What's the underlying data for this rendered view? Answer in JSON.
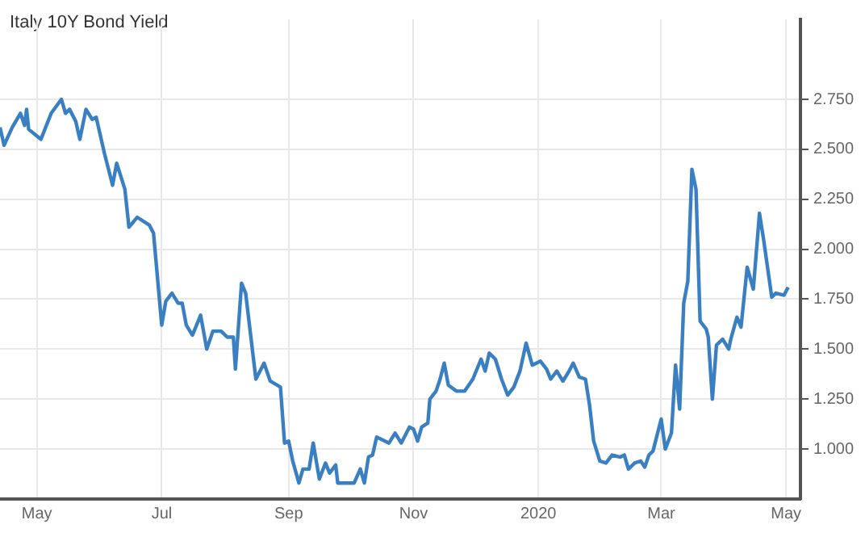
{
  "chart_data": {
    "type": "line",
    "title": "Italy 10Y Bond Yield",
    "x": [
      "2019-04-13",
      "2019-04-15",
      "2019-04-19",
      "2019-04-23",
      "2019-04-25",
      "2019-04-26",
      "2019-04-27",
      "2019-05-03",
      "2019-05-08",
      "2019-05-13",
      "2019-05-15",
      "2019-05-17",
      "2019-05-20",
      "2019-05-22",
      "2019-05-25",
      "2019-05-28",
      "2019-05-30",
      "2019-06-03",
      "2019-06-06",
      "2019-06-07",
      "2019-06-09",
      "2019-06-13",
      "2019-06-15",
      "2019-06-19",
      "2019-06-25",
      "2019-06-27",
      "2019-06-29",
      "2019-07-01",
      "2019-07-03",
      "2019-07-06",
      "2019-07-09",
      "2019-07-11",
      "2019-07-13",
      "2019-07-16",
      "2019-07-20",
      "2019-07-23",
      "2019-07-26",
      "2019-07-30",
      "2019-08-02",
      "2019-08-05",
      "2019-08-06",
      "2019-08-09",
      "2019-08-11",
      "2019-08-16",
      "2019-08-20",
      "2019-08-23",
      "2019-08-28",
      "2019-08-30",
      "2019-09-01",
      "2019-09-03",
      "2019-09-06",
      "2019-09-08",
      "2019-09-11",
      "2019-09-13",
      "2019-09-16",
      "2019-09-19",
      "2019-09-21",
      "2019-09-24",
      "2019-09-25",
      "2019-10-03",
      "2019-10-06",
      "2019-10-08",
      "2019-10-10",
      "2019-10-12",
      "2019-10-14",
      "2019-10-18",
      "2019-10-20",
      "2019-10-23",
      "2019-10-26",
      "2019-10-30",
      "2019-11-01",
      "2019-11-03",
      "2019-11-05",
      "2019-11-08",
      "2019-11-09",
      "2019-11-12",
      "2019-11-14",
      "2019-11-16",
      "2019-11-18",
      "2019-11-22",
      "2019-11-26",
      "2019-11-30",
      "2019-12-04",
      "2019-12-06",
      "2019-12-08",
      "2019-12-11",
      "2019-12-14",
      "2019-12-17",
      "2019-12-20",
      "2019-12-23",
      "2019-12-26",
      "2019-12-29",
      "2020-01-02",
      "2020-01-05",
      "2020-01-07",
      "2020-01-10",
      "2020-01-13",
      "2020-01-16",
      "2020-01-18",
      "2020-01-21",
      "2020-01-24",
      "2020-01-26",
      "2020-01-28",
      "2020-01-31",
      "2020-02-03",
      "2020-02-06",
      "2020-02-10",
      "2020-02-12",
      "2020-02-14",
      "2020-02-17",
      "2020-02-20",
      "2020-02-22",
      "2020-02-24",
      "2020-02-26",
      "2020-03-01",
      "2020-03-03",
      "2020-03-06",
      "2020-03-08",
      "2020-03-10",
      "2020-03-12",
      "2020-03-14",
      "2020-03-16",
      "2020-03-18",
      "2020-03-20",
      "2020-03-23",
      "2020-03-24",
      "2020-03-26",
      "2020-03-28",
      "2020-03-31",
      "2020-04-03",
      "2020-04-04",
      "2020-04-07",
      "2020-04-09",
      "2020-04-12",
      "2020-04-15",
      "2020-04-18",
      "2020-04-20",
      "2020-04-24",
      "2020-04-26",
      "2020-04-30",
      "2020-05-02"
    ],
    "series": [
      {
        "color": "#3a7fc1",
        "values": [
          2.61,
          2.52,
          2.61,
          2.68,
          2.62,
          2.7,
          2.6,
          2.55,
          2.68,
          2.75,
          2.68,
          2.7,
          2.64,
          2.55,
          2.7,
          2.65,
          2.66,
          2.48,
          2.36,
          2.32,
          2.43,
          2.3,
          2.11,
          2.16,
          2.12,
          2.08,
          1.85,
          1.62,
          1.74,
          1.78,
          1.73,
          1.73,
          1.62,
          1.57,
          1.67,
          1.5,
          1.59,
          1.59,
          1.56,
          1.56,
          1.4,
          1.83,
          1.78,
          1.35,
          1.43,
          1.34,
          1.31,
          1.03,
          1.04,
          0.94,
          0.83,
          0.9,
          0.9,
          1.03,
          0.85,
          0.93,
          0.88,
          0.92,
          0.83,
          0.83,
          0.9,
          0.83,
          0.96,
          0.97,
          1.06,
          1.04,
          1.03,
          1.08,
          1.03,
          1.11,
          1.1,
          1.04,
          1.11,
          1.13,
          1.25,
          1.29,
          1.35,
          1.43,
          1.32,
          1.29,
          1.29,
          1.35,
          1.45,
          1.39,
          1.48,
          1.45,
          1.35,
          1.27,
          1.31,
          1.39,
          1.53,
          1.42,
          1.44,
          1.4,
          1.35,
          1.39,
          1.34,
          1.39,
          1.43,
          1.36,
          1.35,
          1.22,
          1.04,
          0.94,
          0.93,
          0.97,
          0.96,
          0.97,
          0.9,
          0.93,
          0.94,
          0.91,
          0.97,
          0.99,
          1.15,
          1.0,
          1.08,
          1.42,
          1.2,
          1.73,
          1.84,
          2.4,
          2.3,
          1.64,
          1.6,
          1.56,
          1.25,
          1.52,
          1.55,
          1.5,
          1.55,
          1.66,
          1.61,
          1.91,
          1.8,
          2.18,
          2.05,
          1.76,
          1.78,
          1.77,
          1.81
        ]
      }
    ],
    "xlim": [
      "2019-04-13",
      "2020-05-08"
    ],
    "xticks": [
      {
        "value": "2019-05-01",
        "label": "May"
      },
      {
        "value": "2019-07-01",
        "label": "Jul"
      },
      {
        "value": "2019-09-01",
        "label": "Sep"
      },
      {
        "value": "2019-11-01",
        "label": "Nov"
      },
      {
        "value": "2020-01-01",
        "label": "2020"
      },
      {
        "value": "2020-03-01",
        "label": "Mar"
      },
      {
        "value": "2020-05-01",
        "label": "May"
      }
    ],
    "ylim": [
      0.75,
      3.15
    ],
    "yticks": [
      {
        "value": 1,
        "label": "1.000"
      },
      {
        "value": 1.25,
        "label": "1.250"
      },
      {
        "value": 1.5,
        "label": "1.500"
      },
      {
        "value": 1.75,
        "label": "1.750"
      },
      {
        "value": 2,
        "label": "2.000"
      },
      {
        "value": 2.25,
        "label": "2.250"
      },
      {
        "value": 2.5,
        "label": "2.500"
      },
      {
        "value": 2.75,
        "label": "2.750"
      }
    ],
    "grid": true,
    "legend": false,
    "marker": "none",
    "line_style": "solid"
  }
}
